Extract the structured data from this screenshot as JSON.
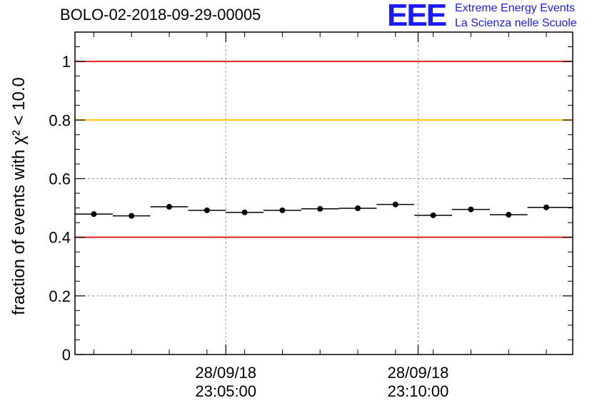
{
  "header": {
    "title": "BOLO-02-2018-09-29-00005",
    "logo_mark": "EEE",
    "logo_line1": "Extreme Energy Events",
    "logo_line2": "La Scienza nelle Scuole"
  },
  "colors": {
    "limit_red": "#e8211b",
    "limit_yellow": "#f5c400",
    "grid": "#9a9a9a",
    "logo_blue": "#1a1aff"
  },
  "chart_data": {
    "type": "scatter",
    "title": "BOLO-02-2018-09-29-00005",
    "ylabel": "fraction of events with χ² < 10.0",
    "xlabel": "",
    "ylim": [
      0,
      1.1
    ],
    "y_ticks": [
      "0",
      "0.2",
      "0.4",
      "0.6",
      "0.8",
      "1"
    ],
    "y_tick_values": [
      0,
      0.2,
      0.4,
      0.6,
      0.8,
      1.0
    ],
    "x_ticks": [
      {
        "value": 4.0,
        "line1": "28/09/18",
        "line2": "23:05:00"
      },
      {
        "value": 9.1,
        "line1": "28/09/18",
        "line2": "23:10:00"
      }
    ],
    "xlim": [
      0,
      13.2
    ],
    "grid": true,
    "reference_lines": [
      {
        "y": 1.0,
        "color": "red"
      },
      {
        "y": 0.8,
        "color": "yellow"
      },
      {
        "y": 0.4,
        "color": "red"
      }
    ],
    "series": [
      {
        "points": [
          {
            "x0": 0.0,
            "x1": 1.0,
            "y": 0.479
          },
          {
            "x0": 1.0,
            "x1": 2.0,
            "y": 0.473
          },
          {
            "x0": 2.0,
            "x1": 3.0,
            "y": 0.504
          },
          {
            "x0": 3.0,
            "x1": 4.0,
            "y": 0.492
          },
          {
            "x0": 4.0,
            "x1": 5.0,
            "y": 0.485
          },
          {
            "x0": 5.0,
            "x1": 6.0,
            "y": 0.492
          },
          {
            "x0": 6.0,
            "x1": 7.0,
            "y": 0.497
          },
          {
            "x0": 7.0,
            "x1": 8.0,
            "y": 0.499
          },
          {
            "x0": 8.0,
            "x1": 9.0,
            "y": 0.512
          },
          {
            "x0": 9.0,
            "x1": 10.0,
            "y": 0.475
          },
          {
            "x0": 10.0,
            "x1": 11.0,
            "y": 0.495
          },
          {
            "x0": 11.0,
            "x1": 12.0,
            "y": 0.477
          },
          {
            "x0": 12.0,
            "x1": 13.2,
            "y": 0.502
          }
        ]
      }
    ]
  }
}
